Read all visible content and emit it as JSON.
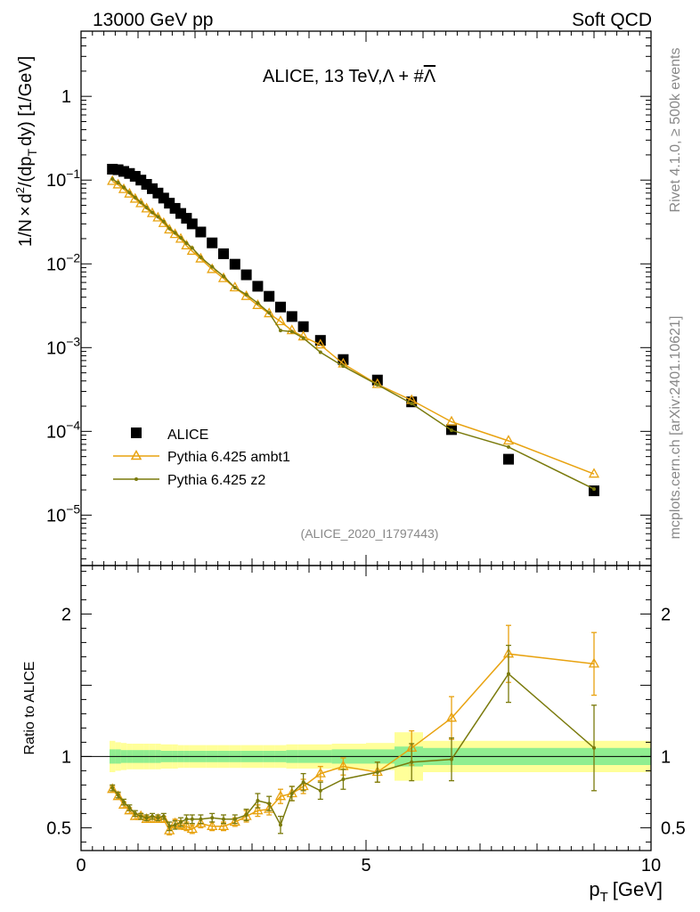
{
  "header": {
    "left": "13000 GeV pp",
    "right": "Soft QCD"
  },
  "chart_data": [
    {
      "type": "scatter",
      "panel": "main",
      "title": "ALICE, 13 TeV,Λ + #Λ̄",
      "title_main": "ALICE, 13 TeV,",
      "title_lambda": "Λ + #",
      "title_lambdabar": "Λ",
      "ylabel": "1/N × d²/(dp_T dy) [1/GeV]",
      "ylabel_parts": {
        "a": "1/N",
        "b": "×",
        "c": "d",
        "sup": "2",
        "d": "/(dp",
        "sub": "T",
        "e": "dy) [1/GeV]"
      },
      "xlabel": "",
      "yscale": "log",
      "ylim": [
        2.5e-06,
        6.0
      ],
      "xlim": [
        0,
        10
      ],
      "y_ticks": [
        {
          "value": 1,
          "label": "1"
        },
        {
          "value": 0.1,
          "base": "10",
          "exp": "−1"
        },
        {
          "value": 0.01,
          "base": "10",
          "exp": "−2"
        },
        {
          "value": 0.001,
          "base": "10",
          "exp": "−3"
        },
        {
          "value": 0.0001,
          "base": "10",
          "exp": "−4"
        },
        {
          "value": 1e-05,
          "base": "10",
          "exp": "−5"
        }
      ],
      "watermark": "(ALICE_2020_I1797443)",
      "legend": {
        "position": "bottom-left",
        "entries": [
          "ALICE",
          "Pythia 6.425 ambt1",
          "Pythia 6.425 z2"
        ]
      },
      "series": [
        {
          "name": "ALICE",
          "color": "#000000",
          "marker": "square",
          "x": [
            0.55,
            0.65,
            0.75,
            0.85,
            0.95,
            1.05,
            1.15,
            1.25,
            1.35,
            1.45,
            1.55,
            1.65,
            1.75,
            1.85,
            1.95,
            2.1,
            2.3,
            2.5,
            2.7,
            2.9,
            3.1,
            3.3,
            3.5,
            3.7,
            3.9,
            4.2,
            4.6,
            5.2,
            5.8,
            6.5,
            7.5,
            9.0
          ],
          "y": [
            0.135,
            0.133,
            0.127,
            0.12,
            0.111,
            0.1,
            0.089,
            0.079,
            0.07,
            0.061,
            0.053,
            0.046,
            0.04,
            0.035,
            0.03,
            0.024,
            0.0178,
            0.0132,
            0.0099,
            0.0074,
            0.0054,
            0.0041,
            0.00305,
            0.00235,
            0.00178,
            0.00122,
            0.00072,
            0.00041,
            0.000225,
            0.000105,
            4.65e-05,
            1.95e-05
          ]
        },
        {
          "name": "Pythia 6.425 ambt1",
          "color": "#e8a20f",
          "marker": "triangle",
          "x": [
            0.55,
            0.65,
            0.75,
            0.85,
            0.95,
            1.05,
            1.15,
            1.25,
            1.35,
            1.45,
            1.55,
            1.65,
            1.75,
            1.85,
            1.95,
            2.1,
            2.3,
            2.5,
            2.7,
            2.9,
            3.1,
            3.3,
            3.5,
            3.7,
            3.9,
            4.2,
            4.6,
            5.2,
            5.8,
            6.5,
            7.5,
            9.0
          ],
          "y": [
            0.097,
            0.088,
            0.0775,
            0.0685,
            0.0595,
            0.0525,
            0.0455,
            0.04,
            0.0355,
            0.0305,
            0.0255,
            0.0225,
            0.0198,
            0.0165,
            0.0142,
            0.0115,
            0.0086,
            0.0067,
            0.0052,
            0.0041,
            0.0032,
            0.00255,
            0.00205,
            0.0016,
            0.00135,
            0.00108,
            0.00064,
            0.000365,
            0.000235,
            0.00013,
            7.7e-05,
            3.1e-05
          ]
        },
        {
          "name": "Pythia 6.425 z2",
          "color": "#7a7a0c",
          "marker": "dot",
          "x": [
            0.55,
            0.65,
            0.75,
            0.85,
            0.95,
            1.05,
            1.15,
            1.25,
            1.35,
            1.45,
            1.55,
            1.65,
            1.75,
            1.85,
            1.95,
            2.1,
            2.3,
            2.5,
            2.7,
            2.9,
            3.1,
            3.3,
            3.5,
            3.7,
            3.9,
            4.2,
            4.6,
            5.2,
            5.8,
            6.5,
            7.5,
            9.0
          ],
          "y": [
            0.103,
            0.093,
            0.082,
            0.071,
            0.062,
            0.054,
            0.047,
            0.041,
            0.0365,
            0.032,
            0.0265,
            0.0235,
            0.0205,
            0.0177,
            0.0155,
            0.012,
            0.0092,
            0.0071,
            0.0052,
            0.0043,
            0.0034,
            0.0026,
            0.0016,
            0.00155,
            0.0013,
            0.00088,
            0.0006,
            0.00036,
            0.000215,
            0.000103,
            6.5e-05,
            2.05e-05
          ]
        }
      ]
    },
    {
      "type": "line",
      "panel": "ratio",
      "ylabel": "Ratio to ALICE",
      "xlabel": "p_T [GeV]",
      "xlabel_main": "p",
      "xlabel_sub": "T",
      "xlabel_unit": "[GeV]",
      "ylim": [
        0.34,
        2.34
      ],
      "xlim": [
        0,
        10
      ],
      "x_ticks": [
        {
          "value": 0,
          "label": "0"
        },
        {
          "value": 5,
          "label": "5"
        },
        {
          "value": 10,
          "label": "10"
        }
      ],
      "y_ticks": [
        {
          "value": 0.5,
          "label": "0.5"
        },
        {
          "value": 1,
          "label": "1"
        },
        {
          "value": 2,
          "label": "2"
        }
      ],
      "bands": {
        "stat_color": "#90ee90",
        "syst_color": "#ffff99",
        "bins": [
          [
            0.5,
            0.6,
            0.05,
            0.11
          ],
          [
            0.6,
            0.7,
            0.05,
            0.1
          ],
          [
            0.7,
            0.8,
            0.045,
            0.095
          ],
          [
            0.8,
            0.9,
            0.045,
            0.09
          ],
          [
            0.9,
            1.0,
            0.045,
            0.09
          ],
          [
            1.0,
            1.1,
            0.045,
            0.09
          ],
          [
            1.1,
            1.2,
            0.045,
            0.09
          ],
          [
            1.2,
            1.3,
            0.045,
            0.09
          ],
          [
            1.3,
            1.4,
            0.045,
            0.09
          ],
          [
            1.4,
            1.5,
            0.04,
            0.085
          ],
          [
            1.5,
            1.6,
            0.04,
            0.085
          ],
          [
            1.6,
            1.7,
            0.04,
            0.085
          ],
          [
            1.7,
            1.8,
            0.04,
            0.08
          ],
          [
            1.8,
            1.9,
            0.04,
            0.08
          ],
          [
            1.9,
            2.0,
            0.04,
            0.08
          ],
          [
            2.0,
            2.2,
            0.04,
            0.08
          ],
          [
            2.2,
            2.4,
            0.04,
            0.08
          ],
          [
            2.4,
            2.6,
            0.04,
            0.08
          ],
          [
            2.6,
            2.8,
            0.04,
            0.08
          ],
          [
            2.8,
            3.0,
            0.04,
            0.08
          ],
          [
            3.0,
            3.2,
            0.04,
            0.08
          ],
          [
            3.2,
            3.4,
            0.04,
            0.08
          ],
          [
            3.4,
            3.6,
            0.04,
            0.08
          ],
          [
            3.6,
            3.8,
            0.045,
            0.085
          ],
          [
            3.8,
            4.0,
            0.045,
            0.085
          ],
          [
            4.0,
            4.4,
            0.045,
            0.085
          ],
          [
            4.4,
            5.0,
            0.05,
            0.09
          ],
          [
            5.0,
            5.5,
            0.05,
            0.095
          ],
          [
            5.5,
            6.0,
            0.07,
            0.17
          ],
          [
            6.0,
            7.0,
            0.06,
            0.11
          ],
          [
            7.0,
            8.0,
            0.06,
            0.11
          ],
          [
            8.0,
            10.0,
            0.06,
            0.11
          ]
        ]
      },
      "series": [
        {
          "name": "Pythia 6.425 ambt1",
          "color": "#e8a20f",
          "x": [
            0.55,
            0.65,
            0.75,
            0.85,
            0.95,
            1.05,
            1.15,
            1.25,
            1.35,
            1.45,
            1.55,
            1.65,
            1.75,
            1.85,
            1.95,
            2.1,
            2.3,
            2.5,
            2.7,
            2.9,
            3.1,
            3.3,
            3.5,
            3.7,
            3.9,
            4.2,
            4.6,
            5.2,
            5.8,
            6.5,
            7.5,
            9.0
          ],
          "y": [
            0.77,
            0.72,
            0.66,
            0.62,
            0.58,
            0.58,
            0.56,
            0.56,
            0.56,
            0.56,
            0.48,
            0.53,
            0.52,
            0.51,
            0.49,
            0.53,
            0.51,
            0.51,
            0.54,
            0.58,
            0.62,
            0.63,
            0.72,
            0.74,
            0.79,
            0.88,
            0.93,
            0.89,
            1.06,
            1.27,
            1.72,
            1.65
          ],
          "err": [
            0.02,
            0.02,
            0.02,
            0.02,
            0.02,
            0.02,
            0.02,
            0.02,
            0.02,
            0.02,
            0.03,
            0.03,
            0.03,
            0.03,
            0.03,
            0.03,
            0.03,
            0.03,
            0.03,
            0.04,
            0.04,
            0.04,
            0.05,
            0.05,
            0.05,
            0.05,
            0.06,
            0.07,
            0.12,
            0.15,
            0.2,
            0.22
          ]
        },
        {
          "name": "Pythia 6.425 z2",
          "color": "#7a7a0c",
          "x": [
            0.55,
            0.65,
            0.75,
            0.85,
            0.95,
            1.05,
            1.15,
            1.25,
            1.35,
            1.45,
            1.55,
            1.65,
            1.75,
            1.85,
            1.95,
            2.1,
            2.3,
            2.5,
            2.7,
            2.9,
            3.1,
            3.3,
            3.5,
            3.7,
            3.9,
            4.2,
            4.6,
            5.2,
            5.8,
            6.5,
            7.5,
            9.0
          ],
          "y": [
            0.78,
            0.73,
            0.68,
            0.64,
            0.6,
            0.58,
            0.57,
            0.58,
            0.57,
            0.58,
            0.51,
            0.52,
            0.54,
            0.56,
            0.56,
            0.56,
            0.57,
            0.56,
            0.56,
            0.59,
            0.69,
            0.67,
            0.52,
            0.74,
            0.82,
            0.76,
            0.84,
            0.89,
            0.96,
            0.98,
            1.58,
            1.06
          ],
          "err": [
            0.02,
            0.02,
            0.02,
            0.02,
            0.02,
            0.02,
            0.02,
            0.02,
            0.02,
            0.02,
            0.03,
            0.03,
            0.03,
            0.03,
            0.03,
            0.03,
            0.03,
            0.03,
            0.03,
            0.04,
            0.05,
            0.05,
            0.06,
            0.05,
            0.06,
            0.06,
            0.07,
            0.07,
            0.13,
            0.15,
            0.2,
            0.3
          ]
        }
      ]
    }
  ],
  "side_labels": {
    "rivet": "Rivet 4.1.0, ≥ 500k events",
    "mcplots": "mcplots.cern.ch [arXiv:2401.10621]"
  }
}
